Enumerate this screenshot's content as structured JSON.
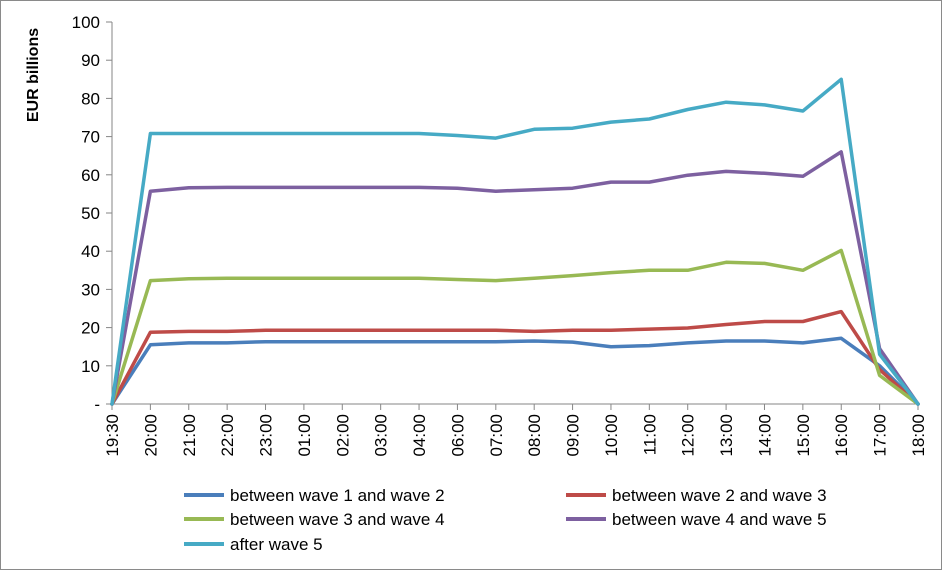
{
  "chart_data": {
    "type": "line",
    "ylabel": "EUR billions",
    "xlabel": "",
    "title": "",
    "ylim": [
      0,
      100
    ],
    "y_ticks": [
      {
        "value": 0,
        "label": "-"
      },
      {
        "value": 10,
        "label": "10"
      },
      {
        "value": 20,
        "label": "20"
      },
      {
        "value": 30,
        "label": "30"
      },
      {
        "value": 40,
        "label": "40"
      },
      {
        "value": 50,
        "label": "50"
      },
      {
        "value": 60,
        "label": "60"
      },
      {
        "value": 70,
        "label": "70"
      },
      {
        "value": 80,
        "label": "80"
      },
      {
        "value": 90,
        "label": "90"
      },
      {
        "value": 100,
        "label": "100"
      }
    ],
    "categories": [
      "19:30",
      "20:00",
      "21:00",
      "22:00",
      "23:00",
      "01:00",
      "02:00",
      "03:00",
      "04:00",
      "06:00",
      "07:00",
      "08:00",
      "09:00",
      "10:00",
      "11:00",
      "12:00",
      "13:00",
      "14:00",
      "15:00",
      "16:00",
      "17:00",
      "18:00"
    ],
    "grid": false,
    "legend_position": "bottom",
    "series": [
      {
        "name": "between wave 1 and wave 2",
        "color": "#4a7ebb",
        "values": [
          0,
          15.5,
          16,
          16,
          16.3,
          16.3,
          16.3,
          16.3,
          16.3,
          16.3,
          16.3,
          16.5,
          16.2,
          15,
          15.3,
          16,
          16.5,
          16.5,
          16,
          17.2,
          10,
          0
        ]
      },
      {
        "name": "between wave 2 and wave 3",
        "color": "#be4b48",
        "values": [
          0,
          18.8,
          19,
          19,
          19.3,
          19.3,
          19.3,
          19.3,
          19.3,
          19.3,
          19.3,
          19,
          19.3,
          19.3,
          19.6,
          19.9,
          20.8,
          21.6,
          21.6,
          24.2,
          9,
          0
        ]
      },
      {
        "name": "between wave 3 and wave 4",
        "color": "#98b954",
        "values": [
          0,
          32.3,
          32.8,
          32.9,
          32.9,
          32.9,
          32.9,
          32.9,
          32.9,
          32.6,
          32.3,
          32.9,
          33.6,
          34.4,
          35,
          35,
          37.1,
          36.8,
          35,
          40.2,
          7.5,
          0
        ]
      },
      {
        "name": "between wave 4 and wave 5",
        "color": "#7d60a0",
        "values": [
          0,
          55.7,
          56.6,
          56.7,
          56.7,
          56.7,
          56.7,
          56.7,
          56.7,
          56.5,
          55.7,
          56.1,
          56.5,
          58.1,
          58.1,
          59.9,
          60.9,
          60.4,
          59.6,
          66,
          14.5,
          0
        ]
      },
      {
        "name": "after wave 5",
        "color": "#46aac5",
        "values": [
          0,
          70.8,
          70.8,
          70.8,
          70.8,
          70.8,
          70.8,
          70.8,
          70.8,
          70.3,
          69.6,
          71.9,
          72.2,
          73.8,
          74.6,
          77.1,
          79,
          78.3,
          76.7,
          85,
          13,
          0
        ]
      }
    ]
  }
}
